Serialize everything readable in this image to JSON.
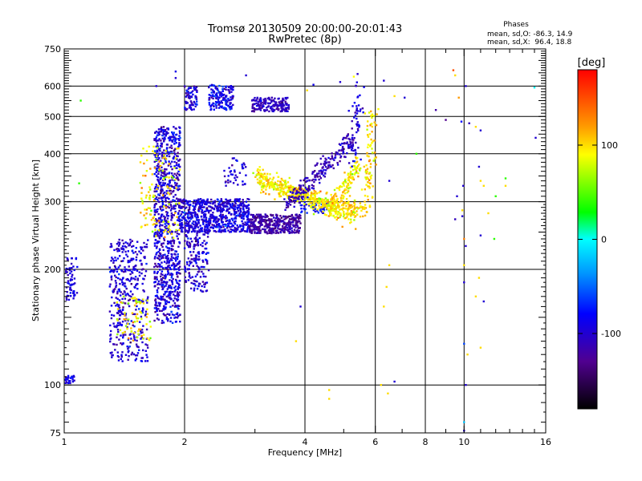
{
  "chart_data": {
    "type": "scatter",
    "title": "Tromsø 20130509 20:00:00-20:01:43",
    "subtitle": "RwPretec (8p)",
    "xlabel": "Frequency [MHz]",
    "ylabel": "Stationary phase Virtual Height [km]",
    "x_scale": "log",
    "y_scale": "log",
    "xlim": [
      1,
      16
    ],
    "ylim": [
      75,
      750
    ],
    "x_ticks": [
      1,
      2,
      4,
      6,
      8,
      10,
      16
    ],
    "x_tick_labels": [
      "1",
      "2",
      "4",
      "6",
      "8",
      "10",
      "16"
    ],
    "x_grid_lines": [
      2,
      4,
      6,
      8,
      10
    ],
    "y_ticks": [
      75,
      100,
      200,
      300,
      400,
      500,
      600,
      750
    ],
    "y_tick_labels": [
      "75",
      "100",
      "200",
      "300",
      "400",
      "500",
      "600",
      "750"
    ],
    "y_grid_lines": [
      100,
      200,
      300,
      400,
      500,
      600
    ],
    "grid": true,
    "phases_box": {
      "title": "Phases",
      "line_o": "mean, sd,O: -86.3, 14.9",
      "line_x": "mean, sd,X:  96.4, 18.8"
    },
    "colorbar": {
      "label": "[deg]",
      "range": [
        -180,
        180
      ],
      "tick_values": [
        100,
        0,
        -100
      ],
      "tick_labels": [
        "100",
        "0",
        "-100"
      ]
    },
    "series": [
      {
        "clusters": [
          {
            "f": [
              1.68,
              1.95
            ],
            "h": [
              145,
              470
            ],
            "phase": -100,
            "n": 900,
            "ph_sd": 18
          },
          {
            "f": [
              1.55,
              1.95
            ],
            "h": [
              240,
              420
            ],
            "phase": 95,
            "n": 120,
            "ph_sd": 20
          },
          {
            "f": [
              1.95,
              2.9
            ],
            "h": [
              250,
              305
            ],
            "phase": -95,
            "n": 650,
            "ph_sd": 15
          },
          {
            "f": [
              2.0,
              2.3
            ],
            "h": [
              175,
              260
            ],
            "phase": -100,
            "n": 170,
            "ph_sd": 15
          },
          {
            "f": [
              1.3,
              1.62
            ],
            "h": [
              115,
              240
            ],
            "phase": -100,
            "n": 400,
            "ph_sd": 15
          },
          {
            "f": [
              1.35,
              1.65
            ],
            "h": [
              130,
              170
            ],
            "phase": 95,
            "n": 70,
            "ph_sd": 20
          },
          {
            "f": [
              2.0,
              2.15
            ],
            "h": [
              520,
              600
            ],
            "phase": -95,
            "n": 70,
            "ph_sd": 15
          },
          {
            "f": [
              2.3,
              2.65
            ],
            "h": [
              520,
              605
            ],
            "phase": -90,
            "n": 150,
            "ph_sd": 18
          },
          {
            "f": [
              2.95,
              3.65
            ],
            "h": [
              515,
              560
            ],
            "phase": -110,
            "n": 170,
            "ph_sd": 12
          },
          {
            "f": [
              2.9,
              3.9
            ],
            "h": [
              248,
              278
            ],
            "phase": -120,
            "n": 380,
            "ph_sd": 10
          },
          {
            "f": [
              3.9,
              4.6
            ],
            "h": [
              280,
              300
            ],
            "phase": -80,
            "n": 50,
            "ph_sd": 15
          },
          {
            "f": [
              1.01,
              1.08
            ],
            "h": [
              165,
              215
            ],
            "phase": -95,
            "n": 60,
            "ph_sd": 12
          },
          {
            "f": [
              1.0,
              1.06
            ],
            "h": [
              101,
              106
            ],
            "phase": -90,
            "n": 25,
            "ph_sd": 10
          },
          {
            "f": [
              2.5,
              2.85
            ],
            "h": [
              330,
              390
            ],
            "phase": -100,
            "n": 40,
            "ph_sd": 15
          }
        ],
        "arcs": [
          {
            "f": [
              3.0,
              5.4
            ],
            "h": [
              355,
              270
            ],
            "phase": 90,
            "n": 320,
            "spread": 0.025,
            "ph_sd": 15
          },
          {
            "f": [
              3.1,
              5.7
            ],
            "h": [
              330,
              285
            ],
            "phase": 100,
            "n": 220,
            "spread": 0.025,
            "ph_sd": 15
          },
          {
            "f": [
              3.6,
              5.3
            ],
            "h": [
              290,
              440
            ],
            "phase": -110,
            "n": 220,
            "spread": 0.03,
            "ph_sd": 12
          },
          {
            "f": [
              4.6,
              5.5
            ],
            "h": [
              280,
              380
            ],
            "phase": 95,
            "n": 120,
            "spread": 0.025,
            "ph_sd": 15
          },
          {
            "f": [
              5.3,
              5.4
            ],
            "h": [
              380,
              600
            ],
            "phase": -100,
            "n": 60,
            "spread": 0.04,
            "ph_sd": 15
          },
          {
            "f": [
              5.7,
              5.9
            ],
            "h": [
              280,
              520
            ],
            "phase": 100,
            "n": 90,
            "spread": 0.03,
            "ph_sd": 15
          }
        ],
        "points": [
          [
            1.9,
            630,
            -100
          ],
          [
            1.9,
            655,
            -90
          ],
          [
            2.05,
            560,
            -110
          ],
          [
            2.85,
            640,
            -100
          ],
          [
            4.2,
            605,
            -90
          ],
          [
            4.9,
            615,
            -100
          ],
          [
            5.3,
            635,
            90
          ],
          [
            6.3,
            620,
            -100
          ],
          [
            6.7,
            565,
            100
          ],
          [
            7.1,
            560,
            -100
          ],
          [
            8.5,
            520,
            -120
          ],
          [
            9.0,
            490,
            -130
          ],
          [
            9.4,
            660,
            150
          ],
          [
            9.5,
            640,
            100
          ],
          [
            9.7,
            560,
            120
          ],
          [
            10.1,
            600,
            -100
          ],
          [
            10.3,
            480,
            -110
          ],
          [
            9.85,
            485,
            -80
          ],
          [
            10.7,
            470,
            100
          ],
          [
            11.0,
            460,
            -100
          ],
          [
            10.9,
            370,
            -100
          ],
          [
            11.0,
            340,
            100
          ],
          [
            11.2,
            330,
            100
          ],
          [
            12.0,
            310,
            40
          ],
          [
            11.5,
            280,
            100
          ],
          [
            11.0,
            245,
            -100
          ],
          [
            11.9,
            240,
            40
          ],
          [
            10.9,
            190,
            100
          ],
          [
            10.7,
            170,
            100
          ],
          [
            11.2,
            165,
            -100
          ],
          [
            11.0,
            125,
            100
          ],
          [
            10.0,
            128,
            -60
          ],
          [
            10.2,
            120,
            100
          ],
          [
            10.1,
            100,
            -100
          ],
          [
            10.0,
            80,
            -20
          ],
          [
            10.0,
            76,
            -100
          ],
          [
            9.9,
            285,
            100
          ],
          [
            9.9,
            275,
            -100
          ],
          [
            9.6,
            310,
            -100
          ],
          [
            9.5,
            270,
            -110
          ],
          [
            10.0,
            240,
            130
          ],
          [
            10.1,
            230,
            -100
          ],
          [
            10.0,
            205,
            100
          ],
          [
            10.0,
            185,
            -100
          ],
          [
            9.95,
            330,
            -100
          ],
          [
            7.6,
            400,
            40
          ],
          [
            6.5,
            340,
            -100
          ],
          [
            6.5,
            205,
            100
          ],
          [
            6.4,
            180,
            100
          ],
          [
            6.3,
            160,
            100
          ],
          [
            6.2,
            100,
            100
          ],
          [
            6.7,
            102,
            -100
          ],
          [
            6.45,
            95,
            100
          ],
          [
            4.6,
            97,
            100
          ],
          [
            4.6,
            92,
            100
          ],
          [
            3.8,
            130,
            100
          ],
          [
            3.9,
            160,
            -100
          ],
          [
            1.1,
            550,
            40
          ],
          [
            1.09,
            335,
            40
          ],
          [
            1.7,
            600,
            -100
          ],
          [
            15.0,
            595,
            0
          ],
          [
            15.1,
            440,
            -100
          ],
          [
            12.7,
            345,
            40
          ],
          [
            12.7,
            330,
            100
          ],
          [
            4.05,
            585,
            100
          ]
        ]
      }
    ]
  }
}
